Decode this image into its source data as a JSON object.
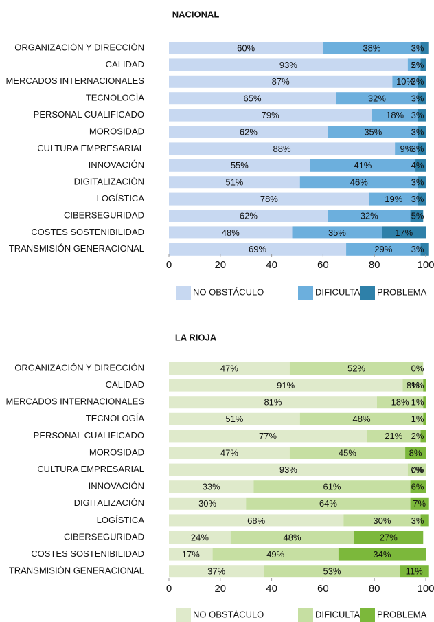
{
  "chart_data": [
    {
      "type": "stacked_bar_horizontal",
      "title": "NACIONAL",
      "categories": [
        "ORGANIZACIÓN Y DIRECCIÓN",
        "CALIDAD",
        "MERCADOS INTERNACIONALES",
        "TECNOLOGÍA",
        "PERSONAL CUALIFICADO",
        "MOROSIDAD",
        "CULTURA EMPRESARIAL",
        "INNOVACIÓN",
        "DIGITALIZACIÓN",
        "LOGÍSTICA",
        "CIBERSEGURIDAD",
        "COSTES SOSTENIBILIDAD",
        "TRANSMISIÓN GENERACIONAL"
      ],
      "series": [
        {
          "name": "NO OBSTÁCULO",
          "color": "#c7d8f1",
          "values": [
            60,
            93,
            87,
            65,
            79,
            62,
            88,
            55,
            51,
            78,
            62,
            48,
            69
          ],
          "value_labels": [
            "60%",
            "93%",
            "87%",
            "65%",
            "79%",
            "62%",
            "88%",
            "55%",
            "51%",
            "78%",
            "62%",
            "48%",
            "69%"
          ]
        },
        {
          "name": "DIFICULTAD",
          "color": "#6cafdd",
          "values": [
            38,
            5,
            10,
            32,
            18,
            35,
            9,
            41,
            46,
            19,
            32,
            35,
            29
          ],
          "value_labels": [
            "38%",
            "5%",
            "10%",
            "32%",
            "18%",
            "35%",
            "9%",
            "41%",
            "46%",
            "19%",
            "32%",
            "35%",
            "29%"
          ]
        },
        {
          "name": "PROBLEMA",
          "color": "#2e80a9",
          "values": [
            3,
            2,
            3,
            3,
            3,
            3,
            3,
            4,
            3,
            3,
            5,
            17,
            3
          ],
          "value_labels": [
            "3%",
            "2%",
            "3%",
            "3%",
            "3%",
            "3%",
            "3%",
            "4%",
            "3%",
            "3%",
            "5%",
            "17%",
            "3%"
          ]
        }
      ],
      "xlim": [
        0,
        100
      ],
      "xticks": [
        0,
        20,
        40,
        60,
        80,
        100
      ],
      "legend": "bottom"
    },
    {
      "type": "stacked_bar_horizontal",
      "title": "LA RIOJA",
      "categories": [
        "ORGANIZACIÓN Y DIRECCIÓN",
        "CALIDAD",
        "MERCADOS INTERNACIONALES",
        "TECNOLOGÍA",
        "PERSONAL CUALIFICADO",
        "MOROSIDAD",
        "CULTURA EMPRESARIAL",
        "INNOVACIÓN",
        "DIGITALIZACIÓN",
        "LOGÍSTICA",
        "CIBERSEGURIDAD",
        "COSTES SOSTENIBILIDAD",
        "TRANSMISIÓN GENERACIONAL"
      ],
      "series": [
        {
          "name": "NO OBSTÁCULO",
          "color": "#dfeacb",
          "values": [
            47,
            91,
            81,
            51,
            77,
            47,
            93,
            33,
            30,
            68,
            24,
            17,
            37
          ],
          "value_labels": [
            "47%",
            "91%",
            "81%",
            "51%",
            "77%",
            "47%",
            "93%",
            "33%",
            "30%",
            "68%",
            "24%",
            "17%",
            "37%"
          ]
        },
        {
          "name": "DIFICULTAD",
          "color": "#c6dfa2",
          "values": [
            52,
            8,
            18,
            48,
            21,
            45,
            7,
            61,
            64,
            30,
            48,
            49,
            53
          ],
          "value_labels": [
            "52%",
            "8%",
            "18%",
            "48%",
            "21%",
            "45%",
            "7%",
            "61%",
            "64%",
            "30%",
            "48%",
            "49%",
            "53%"
          ]
        },
        {
          "name": "PROBLEMA",
          "color": "#7cb83b",
          "values": [
            0,
            1,
            1,
            1,
            2,
            8,
            0,
            6,
            7,
            3,
            27,
            34,
            11
          ],
          "value_labels": [
            "0%",
            "1%",
            "1%",
            "1%",
            "2%",
            "8%",
            "0%",
            "6%",
            "7%",
            "3%",
            "27%",
            "34%",
            "11%"
          ]
        }
      ],
      "xlim": [
        0,
        100
      ],
      "xticks": [
        0,
        20,
        40,
        60,
        80,
        100
      ],
      "legend": "bottom"
    }
  ]
}
